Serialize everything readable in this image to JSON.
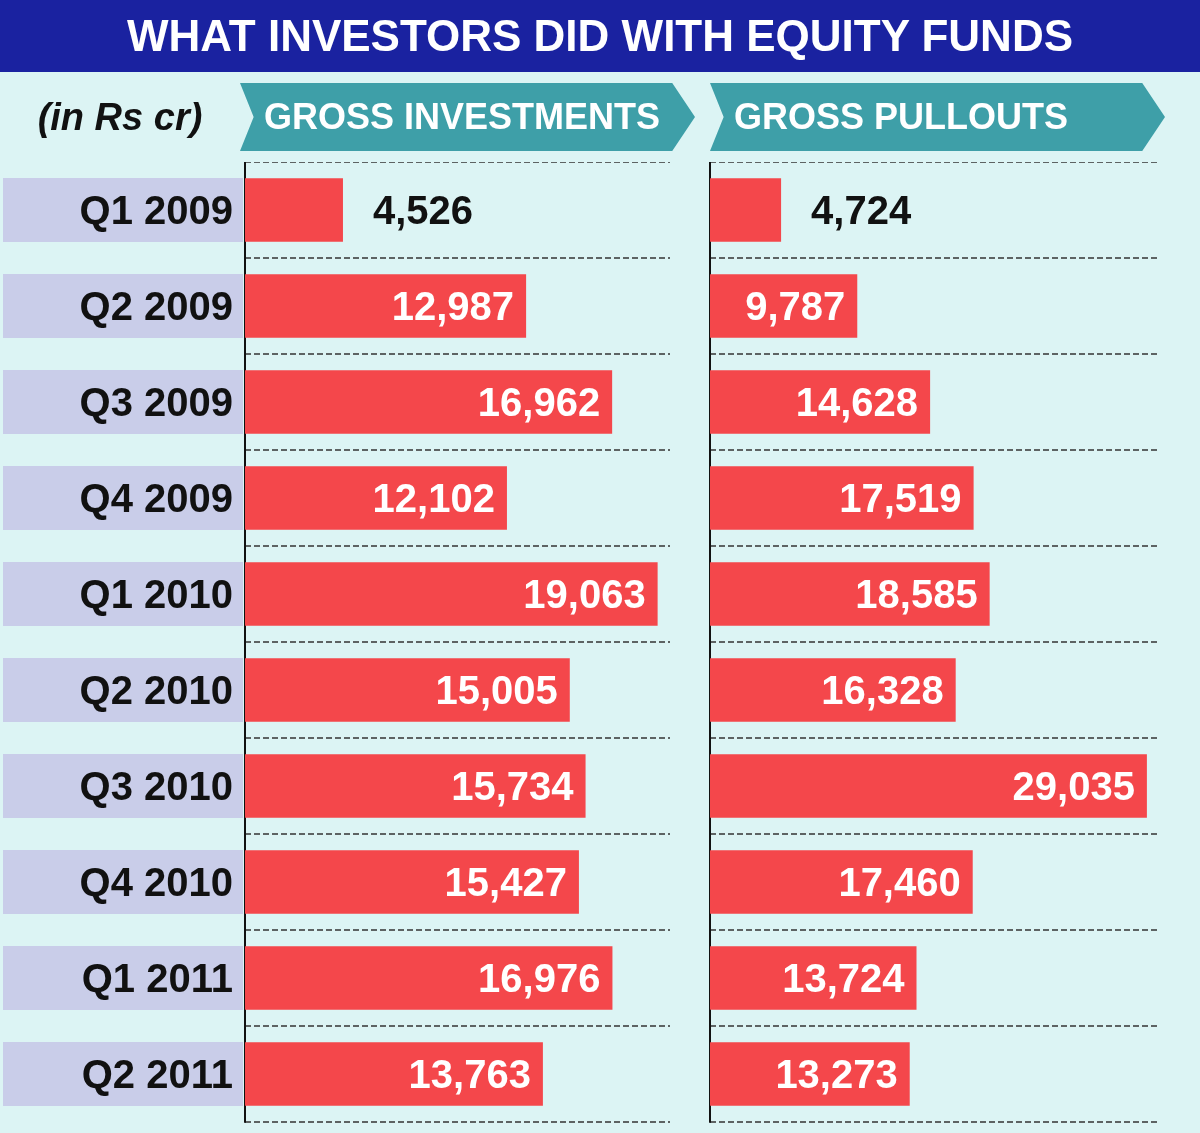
{
  "chart_data": [
    {
      "type": "bar",
      "orientation": "horizontal",
      "title": "WHAT INVESTORS DID WITH EQUITY FUNDS",
      "ylabel": "(in Rs cr)",
      "subtitle": "GROSS INVESTMENTS",
      "categories": [
        "Q1 2009",
        "Q2 2009",
        "Q3 2009",
        "Q4 2009",
        "Q1 2010",
        "Q2 2010",
        "Q3 2010",
        "Q4 2010",
        "Q1 2011",
        "Q2 2011"
      ],
      "values": [
        4526,
        12987,
        16962,
        12102,
        19063,
        15005,
        15734,
        15427,
        16976,
        13763
      ],
      "value_labels": [
        "4,526",
        "12,987",
        "16,962",
        "12,102",
        "19,063",
        "15,005",
        "15,734",
        "15,427",
        "16,976",
        "13,763"
      ],
      "color": "#f4474b",
      "grid": "y",
      "tick_labels": "y"
    },
    {
      "type": "bar",
      "orientation": "horizontal",
      "subtitle": "GROSS PULLOUTS",
      "categories": [
        null,
        null,
        null,
        null,
        null,
        null,
        null,
        null,
        null,
        null
      ],
      "values": [
        4724,
        9787,
        14628,
        17519,
        18585,
        16328,
        29035,
        17460,
        13724,
        13273
      ],
      "value_labels": [
        "4,724",
        "9,787",
        "14,628",
        "17,519",
        "18,585",
        "16,328",
        "29,035",
        "17,460",
        "13,724",
        "13,273"
      ],
      "color": "#f4474b",
      "grid": "y",
      "tick_labels": false
    }
  ]
}
